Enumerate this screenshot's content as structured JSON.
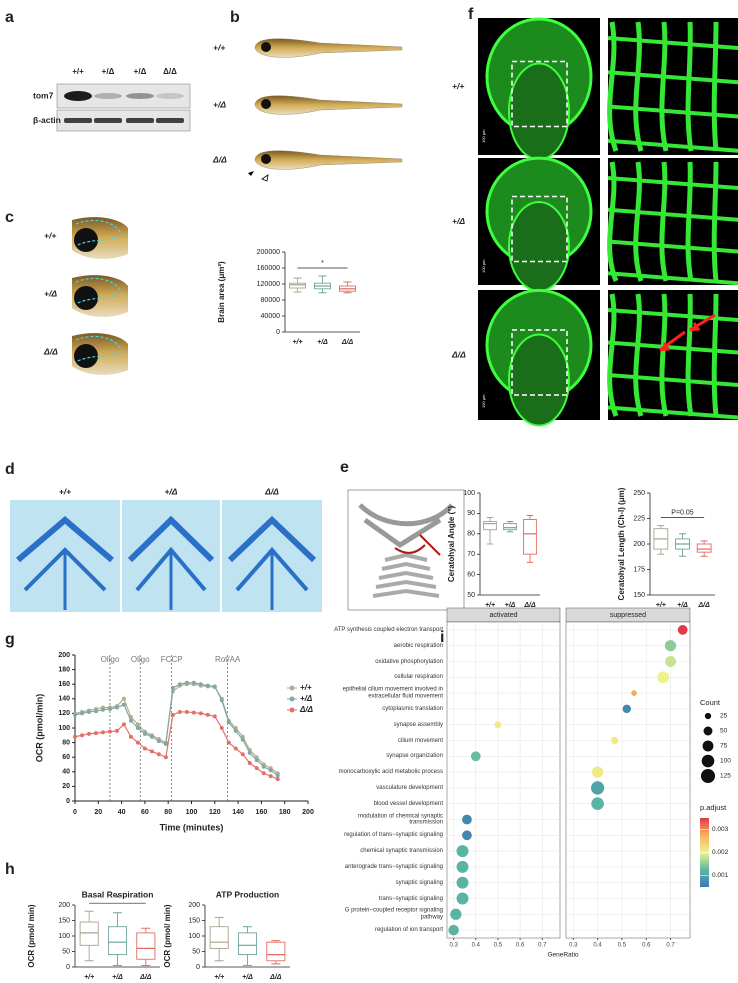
{
  "panel_labels": [
    "a",
    "b",
    "c",
    "d",
    "e",
    "f",
    "g",
    "h",
    "i"
  ],
  "blot": {
    "lanes": [
      "+/+",
      "+/Δ",
      "+/Δ",
      "Δ/Δ"
    ],
    "rows": [
      "tom7",
      "β-actin"
    ]
  },
  "genotypes": [
    "+/+",
    "+/Δ",
    "Δ/Δ"
  ],
  "scale_bar": "100 μm",
  "chart_data": [
    {
      "type": "box",
      "ylabel": "Brain area (μm²)",
      "categories": [
        "+/+",
        "+/Δ",
        "Δ/Δ"
      ],
      "colors": [
        "#a8a48a",
        "#6fa39b",
        "#e06b63"
      ],
      "boxes": [
        {
          "min": 100000,
          "q1": 110000,
          "median": 118000,
          "q3": 122000,
          "max": 135000
        },
        {
          "min": 98000,
          "q1": 108000,
          "median": 115000,
          "q3": 122000,
          "max": 140000
        },
        {
          "min": 98000,
          "q1": 102000,
          "median": 108000,
          "q3": 115000,
          "max": 125000
        }
      ],
      "ylim": [
        0,
        200000
      ],
      "yticks": [
        0,
        40000,
        80000,
        120000,
        160000,
        200000
      ],
      "annotation": "*"
    },
    {
      "type": "box",
      "ylabel": "Ceratohyal Angle (°)",
      "categories": [
        "+/+",
        "+/Δ",
        "Δ/Δ"
      ],
      "colors": [
        "#a8a48a",
        "#6fa39b",
        "#e06b63"
      ],
      "boxes": [
        {
          "min": 75,
          "q1": 82,
          "median": 85,
          "q3": 86,
          "max": 88
        },
        {
          "min": 81,
          "q1": 82,
          "median": 83,
          "q3": 85,
          "max": 86
        },
        {
          "min": 66,
          "q1": 70,
          "median": 80,
          "q3": 87,
          "max": 89
        }
      ],
      "ylim": [
        50,
        100
      ],
      "yticks": [
        50,
        60,
        70,
        80,
        90,
        100
      ]
    },
    {
      "type": "box",
      "ylabel": "Ceratohyal Length (Ch-l) (μm)",
      "categories": [
        "+/+",
        "+/Δ",
        "Δ/Δ"
      ],
      "colors": [
        "#a8a48a",
        "#6fa39b",
        "#e06b63"
      ],
      "boxes": [
        {
          "min": 190,
          "q1": 195,
          "median": 205,
          "q3": 215,
          "max": 218
        },
        {
          "min": 188,
          "q1": 195,
          "median": 200,
          "q3": 205,
          "max": 210
        },
        {
          "min": 188,
          "q1": 192,
          "median": 195,
          "q3": 200,
          "max": 203
        }
      ],
      "ylim": [
        150,
        250
      ],
      "yticks": [
        150,
        175,
        200,
        225,
        250
      ],
      "annotation": "P=0.05"
    },
    {
      "type": "line",
      "xlabel": "Time (minutes)",
      "ylabel": "OCR (pmol/min)",
      "x": [
        0,
        6,
        12,
        18,
        24,
        30,
        36,
        42,
        48,
        54,
        60,
        66,
        72,
        78,
        84,
        90,
        96,
        102,
        108,
        114,
        120,
        126,
        132,
        138,
        144,
        150,
        156,
        162,
        168,
        174
      ],
      "series": [
        {
          "name": "+/+",
          "color": "#b3ae93",
          "values": [
            120,
            122,
            124,
            126,
            128,
            128,
            130,
            140,
            115,
            105,
            95,
            90,
            85,
            80,
            150,
            158,
            160,
            160,
            158,
            157,
            156,
            140,
            110,
            100,
            88,
            70,
            60,
            50,
            45,
            38
          ]
        },
        {
          "name": "+/Δ",
          "color": "#7fa9a1",
          "values": [
            118,
            120,
            122,
            123,
            125,
            126,
            128,
            132,
            110,
            100,
            92,
            88,
            82,
            78,
            155,
            160,
            162,
            162,
            160,
            158,
            157,
            138,
            108,
            96,
            84,
            66,
            56,
            47,
            42,
            35
          ]
        },
        {
          "name": "Δ/Δ",
          "color": "#e37068",
          "values": [
            88,
            90,
            92,
            93,
            94,
            95,
            96,
            105,
            88,
            80,
            72,
            68,
            64,
            60,
            118,
            122,
            122,
            121,
            120,
            118,
            116,
            100,
            80,
            72,
            64,
            52,
            45,
            38,
            34,
            30
          ]
        }
      ],
      "annotations": [
        {
          "x": 30,
          "label": "Oligo"
        },
        {
          "x": 56,
          "label": "Oligo"
        },
        {
          "x": 83,
          "label": "FCCP"
        },
        {
          "x": 131,
          "label": "Rot/AA"
        }
      ],
      "xlim": [
        0,
        200
      ],
      "xticks": [
        0,
        20,
        40,
        60,
        80,
        100,
        120,
        140,
        160,
        180,
        200
      ],
      "ylim": [
        0,
        200
      ],
      "yticks": [
        0,
        20,
        40,
        60,
        80,
        100,
        120,
        140,
        160,
        180,
        200
      ],
      "legend": "top-right"
    },
    {
      "type": "box",
      "title": "Basal Respiration",
      "ylabel": "OCR (pmol/ min)",
      "categories": [
        "+/+",
        "+/Δ",
        "Δ/Δ"
      ],
      "colors": [
        "#a8a48a",
        "#6fa39b",
        "#e06b63"
      ],
      "boxes": [
        {
          "min": 20,
          "q1": 70,
          "median": 110,
          "q3": 145,
          "max": 180
        },
        {
          "min": 5,
          "q1": 40,
          "median": 80,
          "q3": 130,
          "max": 175
        },
        {
          "min": 5,
          "q1": 25,
          "median": 60,
          "q3": 110,
          "max": 125
        }
      ],
      "ylim": [
        0,
        200
      ],
      "yticks": [
        0,
        50,
        100,
        150,
        200
      ],
      "annotation": "*"
    },
    {
      "type": "box",
      "title": "ATP Production",
      "ylabel": "OCR (pmol/ min)",
      "categories": [
        "+/+",
        "+/Δ",
        "Δ/Δ"
      ],
      "colors": [
        "#a8a48a",
        "#6fa39b",
        "#e06b63"
      ],
      "boxes": [
        {
          "min": 20,
          "q1": 60,
          "median": 80,
          "q3": 130,
          "max": 160
        },
        {
          "min": 5,
          "q1": 40,
          "median": 70,
          "q3": 110,
          "max": 130
        },
        {
          "min": 10,
          "q1": 20,
          "median": 40,
          "q3": 80,
          "max": 85
        }
      ],
      "ylim": [
        0,
        200
      ],
      "yticks": [
        0,
        50,
        100,
        150,
        200
      ]
    },
    {
      "type": "dot",
      "xlabel": "GeneRatio",
      "facets": [
        "activated",
        "suppressed"
      ],
      "terms": [
        "ATP synthesis coupled electron transport",
        "aerobic respiration",
        "oxidative phosphorylation",
        "cellular respiration",
        "epithelial cilium movement involved in extracellular fluid movement",
        "cytoplasmic translation",
        "synapse assembly",
        "cilium movement",
        "synapse organization",
        "monocarboxylic acid metabolic process",
        "vasculature development",
        "blood vessel development",
        "modulation of chemical synaptic transmission",
        "regulation of trans−synaptic signaling",
        "chemical synaptic transmission",
        "anterograde trans−synaptic signaling",
        "synaptic signaling",
        "trans−synaptic signaling",
        "G protein−coupled receptor signaling pathway",
        "regulation of ion transport"
      ],
      "facet": [
        "suppressed",
        "suppressed",
        "suppressed",
        "suppressed",
        "suppressed",
        "suppressed",
        "activated",
        "suppressed",
        "activated",
        "suppressed",
        "suppressed",
        "suppressed",
        "activated",
        "activated",
        "activated",
        "activated",
        "activated",
        "activated",
        "activated",
        "activated"
      ],
      "gene_ratio": [
        0.75,
        0.7,
        0.7,
        0.67,
        0.55,
        0.52,
        0.5,
        0.47,
        0.4,
        0.4,
        0.4,
        0.4,
        0.36,
        0.36,
        0.34,
        0.34,
        0.34,
        0.34,
        0.31,
        0.3
      ],
      "count": [
        60,
        80,
        75,
        90,
        20,
        45,
        30,
        35,
        60,
        80,
        110,
        100,
        60,
        60,
        90,
        90,
        90,
        90,
        80,
        70
      ],
      "p_adjust": [
        0.0035,
        0.0015,
        0.0018,
        0.002,
        0.0028,
        0.0007,
        0.0021,
        0.0021,
        0.0013,
        0.0021,
        0.001,
        0.0012,
        0.0007,
        0.0007,
        0.0012,
        0.0012,
        0.0012,
        0.0012,
        0.0012,
        0.0012
      ],
      "xlim": [
        0.27,
        0.78
      ],
      "xticks": [
        0.3,
        0.4,
        0.5,
        0.6,
        0.7
      ],
      "size_title": "Count",
      "size_legend": [
        25,
        50,
        75,
        100,
        125
      ],
      "color_title": "p.adjust",
      "color_scale": [
        "#3b77b8",
        "#5cb8a2",
        "#eef28e",
        "#f8b060",
        "#e03a48"
      ],
      "color_lim": [
        0.0005,
        0.0035
      ],
      "color_ticks": [
        0.001,
        0.002,
        0.003
      ],
      "grid": true
    }
  ]
}
